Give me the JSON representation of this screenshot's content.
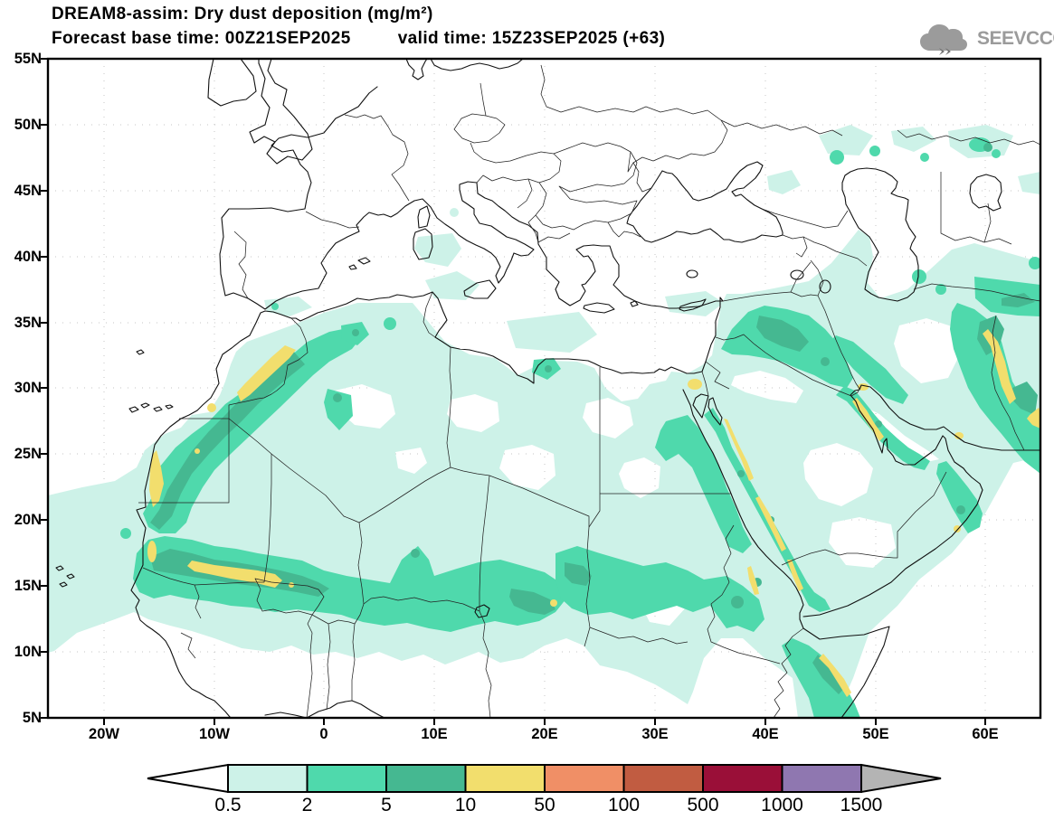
{
  "header": {
    "title_line1": "DREAM8-assim: Dry dust deposition (mg/m²)",
    "forecast_base": "Forecast base time: 00Z21SEP2025",
    "valid_time": "valid time: 15Z23SEP2025 (+63)"
  },
  "logo": {
    "text": "SEEVCCC",
    "color": "#9b9b9b"
  },
  "axes": {
    "lat_labels": [
      "55N",
      "50N",
      "45N",
      "40N",
      "35N",
      "30N",
      "25N",
      "20N",
      "15N",
      "10N",
      "5N"
    ],
    "lon_labels": [
      "20W",
      "10W",
      "0",
      "10E",
      "20E",
      "30E",
      "40E",
      "50E",
      "60E"
    ]
  },
  "colorbar": {
    "boundary_labels": [
      "0.5",
      "2",
      "5",
      "10",
      "50",
      "100",
      "500",
      "1000",
      "1500"
    ],
    "below_min_color": "#ffffff",
    "band_colors": [
      "#cdf2e8",
      "#4fd9ac",
      "#45b891",
      "#f2de6d",
      "#f08f66",
      "#c15c41",
      "#9a0f38",
      "#8f77b0"
    ],
    "above_max_color": "#b4b4b4"
  },
  "chart_data": {
    "type": "filled-contour-map",
    "model": "DREAM8-assim",
    "variable": "Dry dust deposition",
    "units": "mg/m²",
    "base_time": "00Z21SEP2025",
    "valid_time": "15Z23SEP2025",
    "forecast_hour": "+63",
    "contour_levels": [
      0.5,
      2,
      5,
      10,
      50,
      100,
      500,
      1000,
      1500
    ],
    "lat_ticks_deg_north": [
      55,
      50,
      45,
      40,
      35,
      30,
      25,
      20,
      15,
      10,
      5
    ],
    "lon_ticks_deg_east": [
      -20,
      -10,
      0,
      10,
      20,
      30,
      40,
      50,
      60
    ],
    "levels_present_on_map": [
      0.5,
      2,
      5,
      10
    ]
  }
}
